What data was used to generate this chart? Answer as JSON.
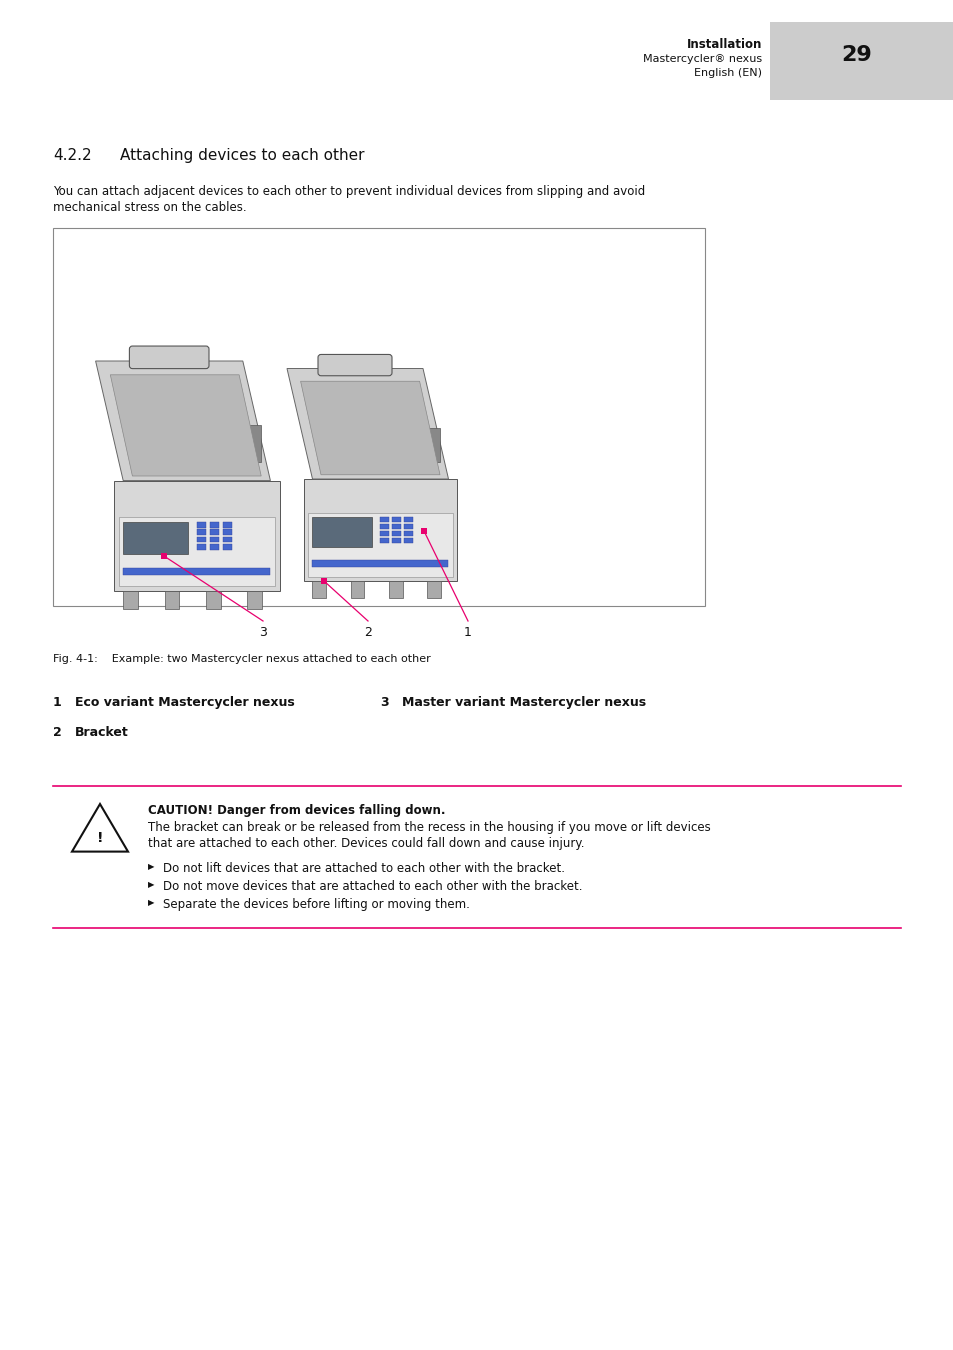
{
  "page_title_bold": "Installation",
  "page_subtitle1": "Mastercycler® nexus",
  "page_subtitle2": "English (EN)",
  "page_number": "29",
  "section_heading_num": "4.2.2",
  "section_heading_text": "Attaching devices to each other",
  "intro_text_line1": "You can attach adjacent devices to each other to prevent individual devices from slipping and avoid",
  "intro_text_line2": "mechanical stress on the cables.",
  "fig_caption": "Fig. 4-1:    Example: two Mastercycler nexus attached to each other",
  "label1_num": "1",
  "label1_text": "Eco variant Mastercycler nexus",
  "label2_num": "2",
  "label2_text": "Bracket",
  "label3_num": "3",
  "label3_text": "Master variant Mastercycler nexus",
  "caution_title": "CAUTION! Danger from devices falling down.",
  "caution_body_line1": "The bracket can break or be released from the recess in the housing if you move or lift devices",
  "caution_body_line2": "that are attached to each other. Devices could fall down and cause injury.",
  "bullet1": "Do not lift devices that are attached to each other with the bracket.",
  "bullet2": "Do not move devices that are attached to each other with the bracket.",
  "bullet3": "Separate the devices before lifting or moving them.",
  "pink_line_color": "#e8006e",
  "body_font_color": "#111111",
  "gray_text_color": "#333333",
  "light_gray": "#cccccc",
  "header_gray_bg": "#cccccc"
}
